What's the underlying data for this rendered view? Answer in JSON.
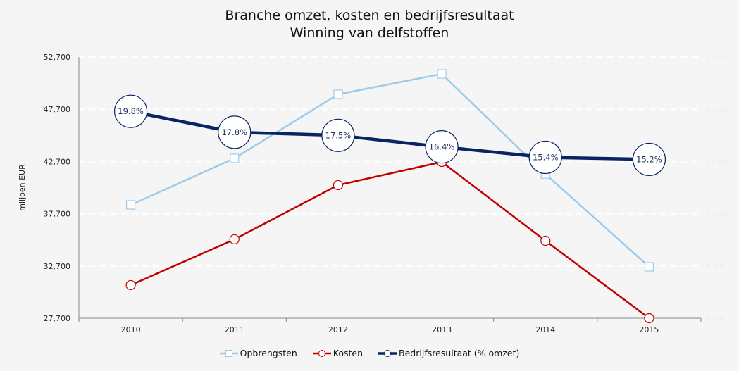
{
  "chart_data": {
    "type": "line",
    "title": [
      "Branche omzet, kosten en bedrijfsresultaat",
      "Winning van delfstoffen"
    ],
    "ylabel": "miljoen EUR",
    "categories": [
      "2010",
      "2011",
      "2012",
      "2013",
      "2014",
      "2015"
    ],
    "ylim": [
      27700,
      52700
    ],
    "yticks": [
      "27,700",
      "32,700",
      "37,700",
      "42,700",
      "47,700",
      "52,700"
    ],
    "y2lim": [
      0,
      25
    ],
    "y2ticks": [
      "0.0%",
      "5.0%",
      "10.0%",
      "15.0%",
      "20.0%",
      "25.0%"
    ],
    "grid": true,
    "legend_position": "bottom",
    "series": [
      {
        "name": "Opbrengsten",
        "axis": "left",
        "color": "#9dcbea",
        "marker": "square",
        "values": [
          38550,
          43000,
          49130,
          51080,
          41500,
          32620
        ]
      },
      {
        "name": "Kosten",
        "axis": "left",
        "color": "#c00000",
        "marker": "circle",
        "values": [
          30870,
          35250,
          40440,
          42660,
          35110,
          27700
        ]
      },
      {
        "name": "Bedrijfsresultaat (% omzet)",
        "axis": "right",
        "color": "#0a2463",
        "marker": "circle",
        "values": [
          19.8,
          17.8,
          17.5,
          16.4,
          15.4,
          15.2
        ],
        "labels": [
          "19.8%",
          "17.8%",
          "17.5%",
          "16.4%",
          "15.4%",
          "15.2%"
        ]
      }
    ]
  }
}
